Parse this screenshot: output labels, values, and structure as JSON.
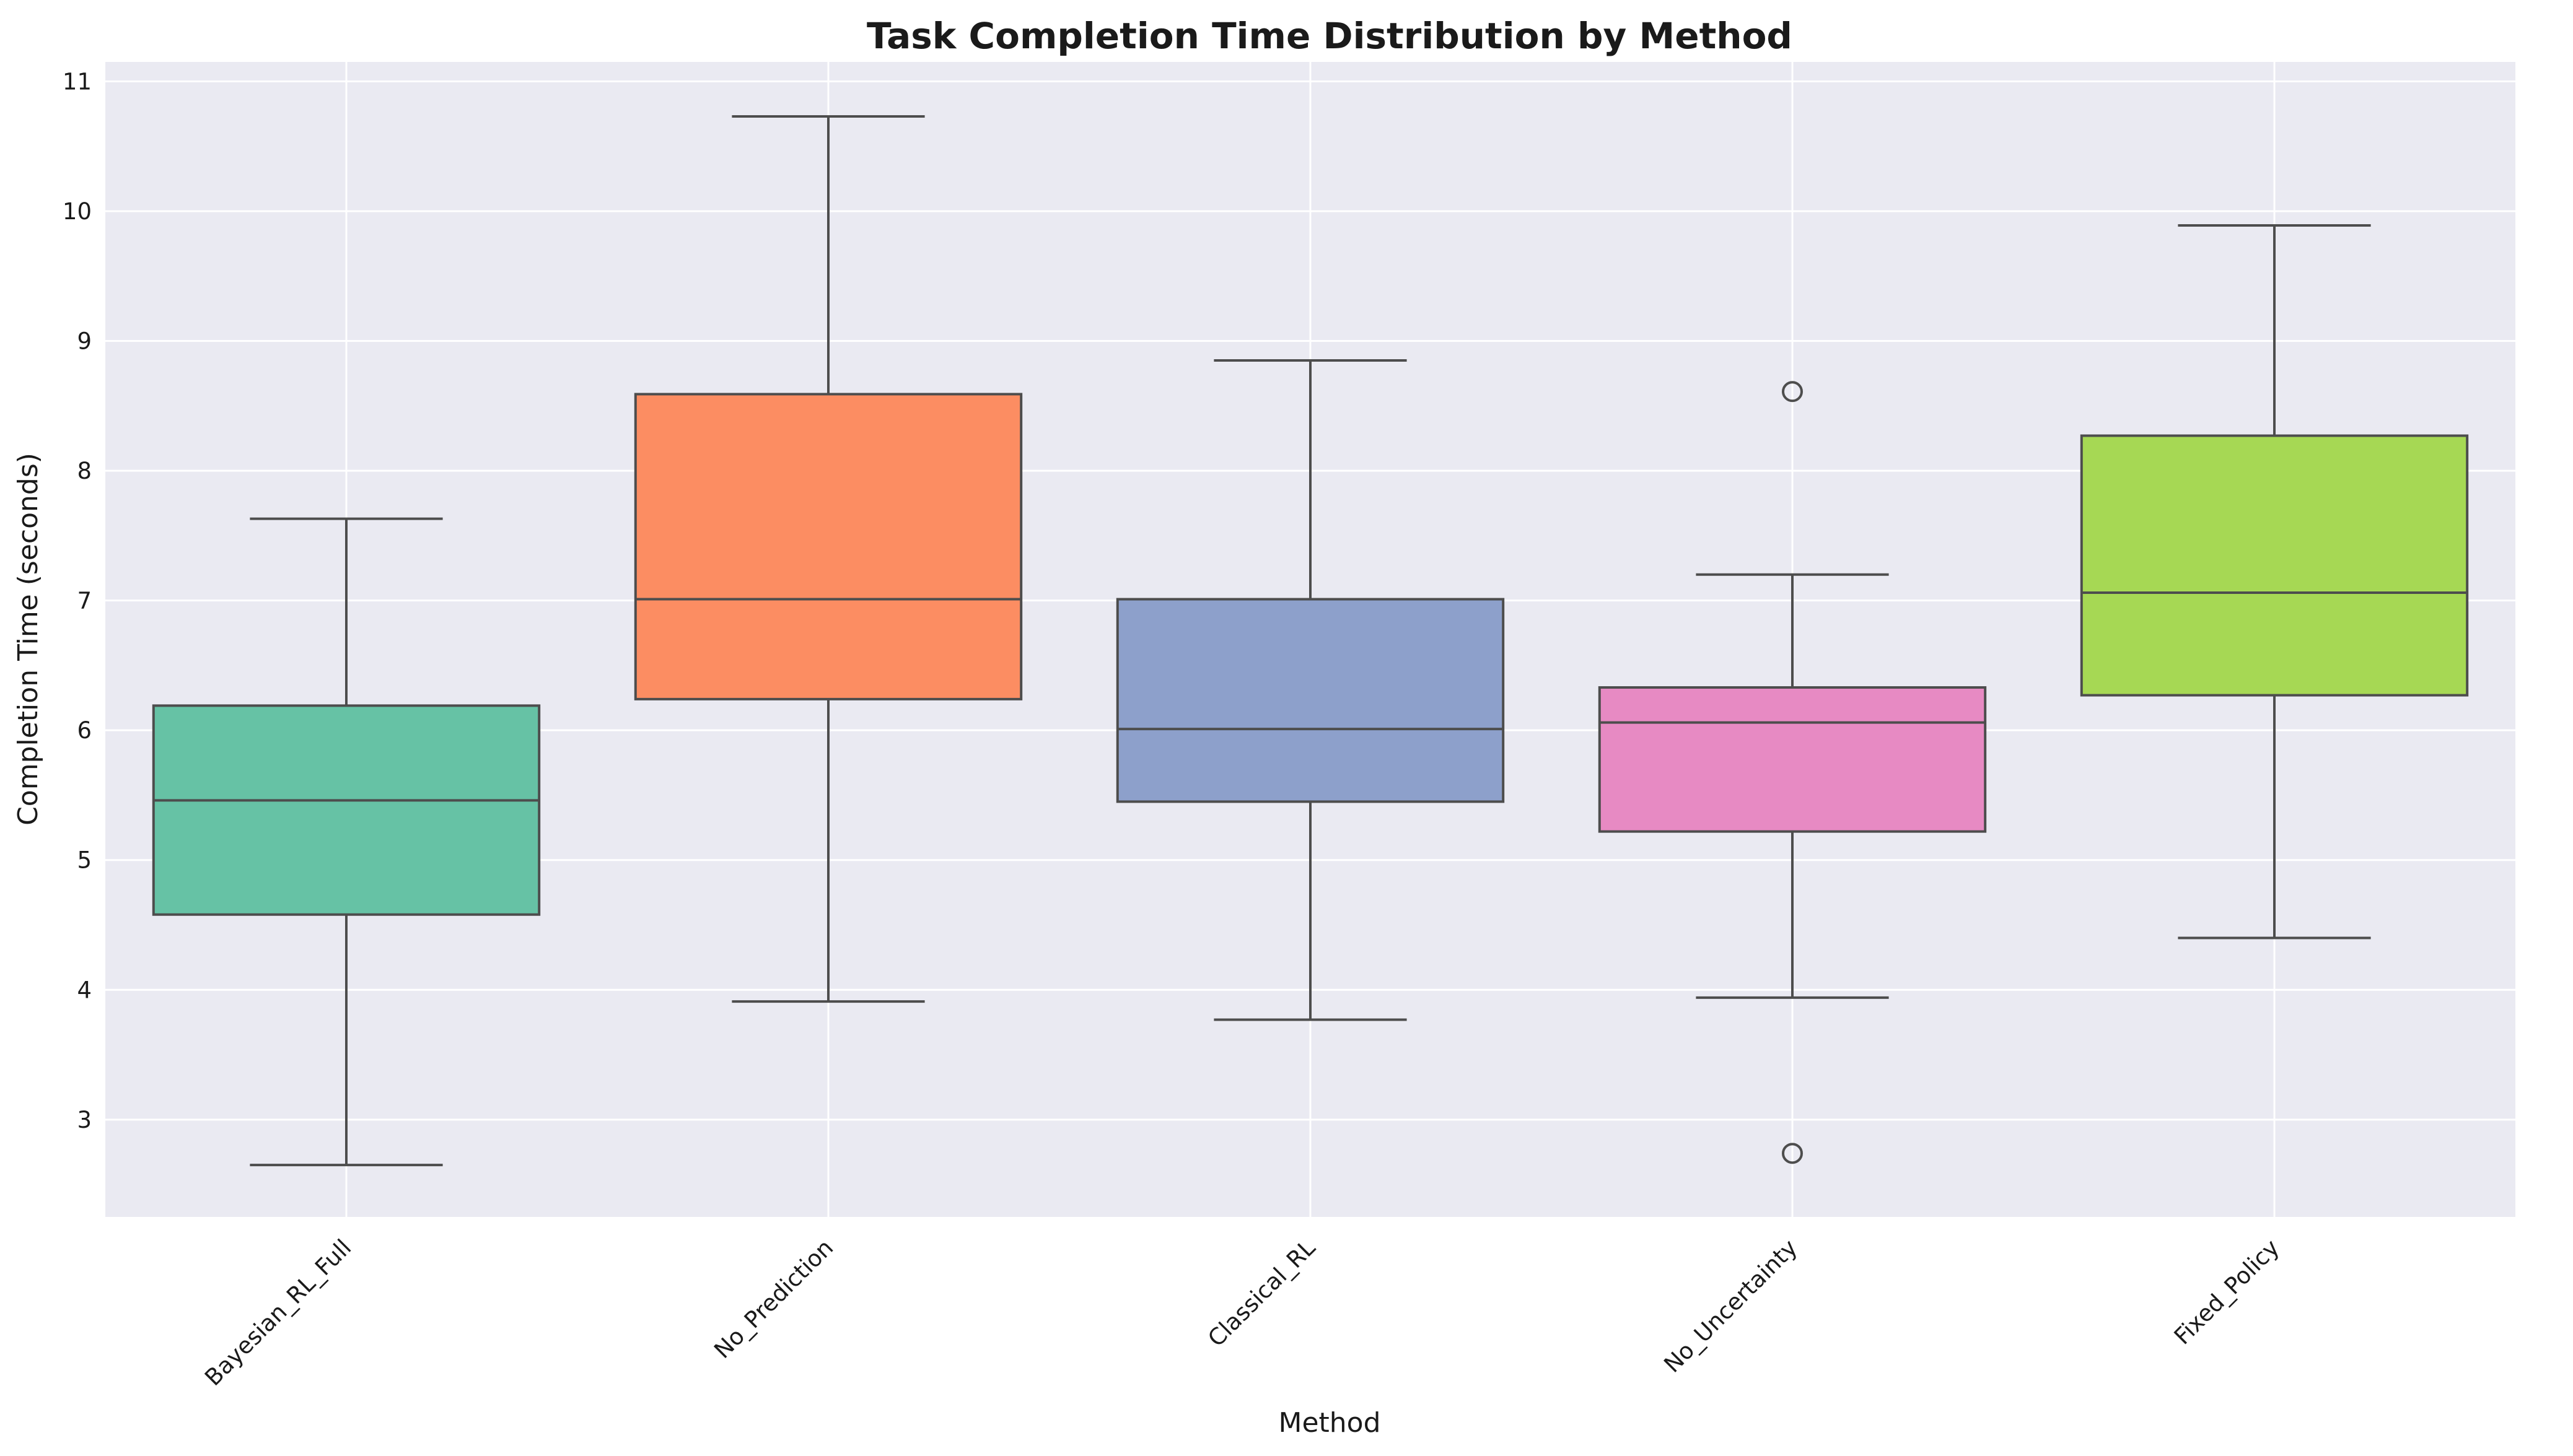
{
  "chart_data": {
    "type": "box",
    "title": "Task Completion Time Distribution by Method",
    "xlabel": "Method",
    "ylabel": "Completion Time (seconds)",
    "ylim": [
      2.25,
      11.15
    ],
    "yticks": [
      3,
      4,
      5,
      6,
      7,
      8,
      9,
      10,
      11
    ],
    "grid": true,
    "background": "#eaeaf2",
    "categories": [
      "Bayesian_RL_Full",
      "No_Prediction",
      "Classical_RL",
      "No_Uncertainty",
      "Fixed_Policy"
    ],
    "series": [
      {
        "category": "Bayesian_RL_Full",
        "color": "#66c2a5",
        "whisker_low": 2.65,
        "q1": 4.58,
        "median": 5.46,
        "q3": 6.19,
        "whisker_high": 7.63,
        "outliers": []
      },
      {
        "category": "No_Prediction",
        "color": "#fc8d62",
        "whisker_low": 3.91,
        "q1": 6.24,
        "median": 7.01,
        "q3": 8.59,
        "whisker_high": 10.73,
        "outliers": []
      },
      {
        "category": "Classical_RL",
        "color": "#8da0cb",
        "whisker_low": 3.77,
        "q1": 5.45,
        "median": 6.01,
        "q3": 7.01,
        "whisker_high": 8.85,
        "outliers": []
      },
      {
        "category": "No_Uncertainty",
        "color": "#e78ac3",
        "whisker_low": 3.94,
        "q1": 5.22,
        "median": 6.06,
        "q3": 6.33,
        "whisker_high": 7.2,
        "outliers": [
          8.61,
          2.74
        ]
      },
      {
        "category": "Fixed_Policy",
        "color": "#a6d854",
        "whisker_low": 4.4,
        "q1": 6.27,
        "median": 7.06,
        "q3": 8.27,
        "whisker_high": 9.89,
        "outliers": []
      }
    ]
  }
}
